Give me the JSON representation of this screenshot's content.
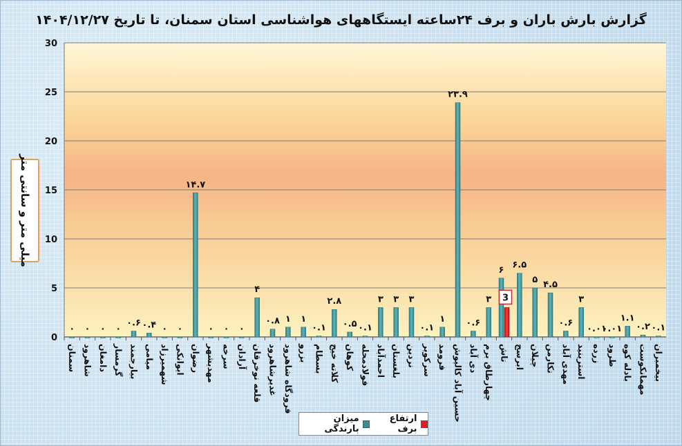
{
  "chart_data": {
    "type": "bar",
    "title": "گزارش بارش باران و برف ۲۴ساعته ایستگاههای هواشناسی استان سمنان، تا تاریخ ۱۴۰۴/۱۲/۲۷",
    "xlabel": "",
    "ylabel": "میلی متر و سانتی متر",
    "ylim": [
      0,
      30
    ],
    "yticks": [
      0,
      5,
      10,
      15,
      20,
      25,
      30
    ],
    "grid": true,
    "legend_position": "bottom",
    "categories": [
      "سمنان",
      "شاهرود",
      "دامغان",
      "گرمسار",
      "بیارجمند",
      "میامی",
      "شهمیرزاد",
      "ایوانکی",
      "رضوان",
      "مهدیشهر",
      "سرخه",
      "آرادان",
      "قلعه نوخرقان",
      "غدیرشاهرود",
      "فرودگاه شاهرود",
      "بزرو",
      "بسطام",
      "کلاته خیج",
      "کوهان",
      "فولادمحله",
      "احمدآباد",
      "بلغستان",
      "نردین",
      "سرکویر",
      "فرومد",
      "حسین آباد کالپوش",
      "دی آباد",
      "چهارطاق برم",
      "تاش",
      "ابرسج",
      "چیلان",
      "تکارمن",
      "مهدی آباد",
      "استرینید",
      "زرده",
      "طرود",
      "بادله کوه",
      "مهمانکوست",
      "بیخمبران"
    ],
    "series": [
      {
        "name": "میزان بارندگی",
        "color": "#3a8f96",
        "values": [
          0,
          0,
          0,
          0,
          0.6,
          0.4,
          0,
          0,
          14.7,
          0,
          0,
          0,
          4,
          0.8,
          1,
          1,
          0.1,
          2.8,
          0.5,
          0.1,
          3,
          3,
          3,
          0.1,
          1,
          23.9,
          0.6,
          3,
          6,
          6.5,
          5,
          4.5,
          0.6,
          3,
          0.01,
          0.01,
          1.1,
          0.2,
          0.1
        ]
      },
      {
        "name": "ارتفاع برف",
        "color": "#e02020",
        "values": [
          0,
          0,
          0,
          0,
          0,
          0,
          0,
          0,
          0,
          0,
          0,
          0,
          0,
          0,
          0,
          0,
          0,
          0,
          0,
          0,
          0,
          0,
          0,
          0,
          0,
          0,
          0,
          0,
          3,
          0,
          0,
          0,
          0,
          0,
          0,
          0,
          0,
          0,
          0
        ]
      }
    ],
    "value_labels": [
      "۰",
      "۰",
      "۰",
      "۰",
      "۰.۶",
      "۰.۴",
      "۰",
      "۰",
      "۱۴.۷",
      "۰",
      "۰",
      "۰",
      "۴",
      "۰.۸",
      "۱",
      "۱",
      "۰.۱",
      "۲.۸",
      "۰.۵",
      "۰.۱",
      "۳",
      "۳",
      "۳",
      "۰.۱",
      "۱",
      "۲۳.۹",
      "۰.۶",
      "۳",
      "۶",
      "۶.۵",
      "۵",
      "۴.۵",
      "۰.۶",
      "۳",
      "۰.۰۱",
      "۰.۰۱",
      "۱.۱",
      "۰.۲",
      "۰.۱"
    ],
    "snow_label": "3"
  }
}
